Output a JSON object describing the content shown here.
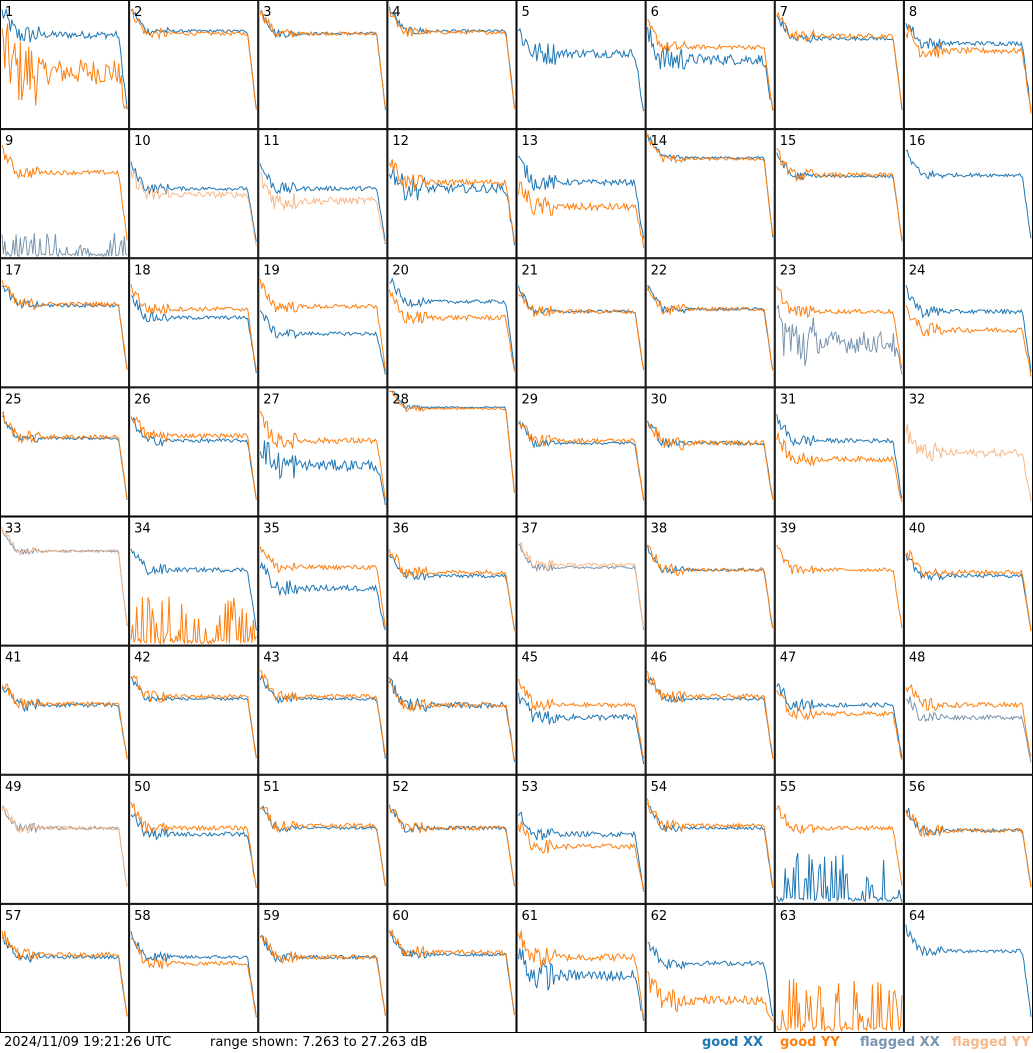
{
  "footer": {
    "timestamp": "2024/11/09 19:21:26 UTC",
    "range_text": "range shown: 7.263 to 27.263 dB",
    "legend": {
      "good_xx": "good XX",
      "good_yy": "good YY",
      "flagged_xx": "flagged XX",
      "flagged_yy": "flagged YY"
    }
  },
  "colors": {
    "good_xx": "#1f77b4",
    "good_yy": "#ff7f0e",
    "flagged_xx": "#7a95b0",
    "flagged_yy": "#f7b98a",
    "grid": "#000000"
  },
  "chart_data": {
    "type": "line",
    "layout": "8x8 small multiples",
    "y_range_db": [
      7.263,
      27.263
    ],
    "panels": [
      {
        "id": "1",
        "xx": "good",
        "yy": "good",
        "xx_level": 0.75,
        "yy_level": 0.45,
        "xx_noise": 0.1,
        "yy_noise": 0.35
      },
      {
        "id": "2",
        "xx": "good",
        "yy": "good",
        "xx_level": 0.78,
        "yy_level": 0.76,
        "xx_noise": 0.04,
        "yy_noise": 0.05
      },
      {
        "id": "3",
        "xx": "good",
        "yy": "good",
        "xx_level": 0.76,
        "yy_level": 0.76,
        "xx_noise": 0.04,
        "yy_noise": 0.05
      },
      {
        "id": "4",
        "xx": "good",
        "yy": "good",
        "xx_level": 0.78,
        "yy_level": 0.77,
        "xx_noise": 0.04,
        "yy_noise": 0.05
      },
      {
        "id": "5",
        "xx": "good",
        "yy": "flagged",
        "xx_level": 0.6,
        "yy_level": 0.0,
        "xx_noise": 0.12,
        "yy_noise": 0.0
      },
      {
        "id": "6",
        "xx": "good",
        "yy": "good",
        "xx_level": 0.55,
        "yy_level": 0.65,
        "xx_noise": 0.15,
        "yy_noise": 0.06
      },
      {
        "id": "7",
        "xx": "good",
        "yy": "good",
        "xx_level": 0.72,
        "yy_level": 0.74,
        "xx_noise": 0.05,
        "yy_noise": 0.06
      },
      {
        "id": "8",
        "xx": "good",
        "yy": "good",
        "xx_level": 0.68,
        "yy_level": 0.62,
        "xx_noise": 0.06,
        "yy_noise": 0.08
      },
      {
        "id": "9",
        "xx": "flagged",
        "yy": "good",
        "xx_level": 0.05,
        "yy_level": 0.68,
        "xx_noise": 0.2,
        "yy_noise": 0.06
      },
      {
        "id": "10",
        "xx": "good",
        "yy": "flagged",
        "xx_level": 0.55,
        "yy_level": 0.5,
        "xx_noise": 0.05,
        "yy_noise": 0.08
      },
      {
        "id": "11",
        "xx": "good",
        "yy": "flagged",
        "xx_level": 0.55,
        "yy_level": 0.45,
        "xx_noise": 0.06,
        "yy_noise": 0.1
      },
      {
        "id": "12",
        "xx": "good",
        "yy": "good",
        "xx_level": 0.55,
        "yy_level": 0.6,
        "xx_noise": 0.12,
        "yy_noise": 0.08
      },
      {
        "id": "13",
        "xx": "good",
        "yy": "good",
        "xx_level": 0.6,
        "yy_level": 0.4,
        "xx_noise": 0.08,
        "yy_noise": 0.1
      },
      {
        "id": "14",
        "xx": "good",
        "yy": "good",
        "xx_level": 0.8,
        "yy_level": 0.79,
        "xx_noise": 0.03,
        "yy_noise": 0.04
      },
      {
        "id": "15",
        "xx": "good",
        "yy": "good",
        "xx_level": 0.65,
        "yy_level": 0.66,
        "xx_noise": 0.04,
        "yy_noise": 0.06
      },
      {
        "id": "16",
        "xx": "good",
        "yy": "flagged",
        "xx_level": 0.66,
        "yy_level": 0.0,
        "xx_noise": 0.05,
        "yy_noise": 0.0
      },
      {
        "id": "17",
        "xx": "good",
        "yy": "good",
        "xx_level": 0.65,
        "yy_level": 0.66,
        "xx_noise": 0.05,
        "yy_noise": 0.06
      },
      {
        "id": "18",
        "xx": "good",
        "yy": "good",
        "xx_level": 0.55,
        "yy_level": 0.62,
        "xx_noise": 0.05,
        "yy_noise": 0.06
      },
      {
        "id": "19",
        "xx": "good",
        "yy": "good",
        "xx_level": 0.42,
        "yy_level": 0.64,
        "xx_noise": 0.05,
        "yy_noise": 0.06
      },
      {
        "id": "20",
        "xx": "good",
        "yy": "good",
        "xx_level": 0.68,
        "yy_level": 0.55,
        "xx_noise": 0.05,
        "yy_noise": 0.07
      },
      {
        "id": "21",
        "xx": "good",
        "yy": "good",
        "xx_level": 0.6,
        "yy_level": 0.6,
        "xx_noise": 0.04,
        "yy_noise": 0.06
      },
      {
        "id": "22",
        "xx": "good",
        "yy": "good",
        "xx_level": 0.62,
        "yy_level": 0.62,
        "xx_noise": 0.04,
        "yy_noise": 0.05
      },
      {
        "id": "23",
        "xx": "flagged",
        "yy": "good",
        "xx_level": 0.35,
        "yy_level": 0.6,
        "xx_noise": 0.3,
        "yy_noise": 0.06
      },
      {
        "id": "24",
        "xx": "good",
        "yy": "good",
        "xx_level": 0.6,
        "yy_level": 0.45,
        "xx_noise": 0.06,
        "yy_noise": 0.07
      },
      {
        "id": "25",
        "xx": "good",
        "yy": "good",
        "xx_level": 0.62,
        "yy_level": 0.63,
        "xx_noise": 0.04,
        "yy_noise": 0.06
      },
      {
        "id": "26",
        "xx": "good",
        "yy": "good",
        "xx_level": 0.6,
        "yy_level": 0.64,
        "xx_noise": 0.05,
        "yy_noise": 0.06
      },
      {
        "id": "27",
        "xx": "good",
        "yy": "good",
        "xx_level": 0.4,
        "yy_level": 0.6,
        "xx_noise": 0.15,
        "yy_noise": 0.08
      },
      {
        "id": "28",
        "xx": "good",
        "yy": "good",
        "xx_level": 0.87,
        "yy_level": 0.86,
        "xx_noise": 0.02,
        "yy_noise": 0.03
      },
      {
        "id": "29",
        "xx": "good",
        "yy": "good",
        "xx_level": 0.58,
        "yy_level": 0.6,
        "xx_noise": 0.04,
        "yy_noise": 0.06
      },
      {
        "id": "30",
        "xx": "good",
        "yy": "good",
        "xx_level": 0.58,
        "yy_level": 0.58,
        "xx_noise": 0.05,
        "yy_noise": 0.07
      },
      {
        "id": "31",
        "xx": "good",
        "yy": "good",
        "xx_level": 0.6,
        "yy_level": 0.45,
        "xx_noise": 0.06,
        "yy_noise": 0.07
      },
      {
        "id": "32",
        "xx": "flagged",
        "yy": "flagged",
        "xx_level": 0.0,
        "yy_level": 0.5,
        "xx_noise": 0.0,
        "yy_noise": 0.1
      },
      {
        "id": "33",
        "xx": "flagged",
        "yy": "flagged",
        "xx_level": 0.75,
        "yy_level": 0.75,
        "xx_noise": 0.03,
        "yy_noise": 0.04
      },
      {
        "id": "34",
        "xx": "good",
        "yy": "good",
        "xx_level": 0.6,
        "yy_level": 0.0,
        "xx_noise": 0.06,
        "yy_noise": 0.4
      },
      {
        "id": "35",
        "xx": "good",
        "yy": "good",
        "xx_level": 0.45,
        "yy_level": 0.62,
        "xx_noise": 0.08,
        "yy_noise": 0.06
      },
      {
        "id": "36",
        "xx": "good",
        "yy": "good",
        "xx_level": 0.55,
        "yy_level": 0.58,
        "xx_noise": 0.05,
        "yy_noise": 0.06
      },
      {
        "id": "37",
        "xx": "flagged",
        "yy": "flagged",
        "xx_level": 0.62,
        "yy_level": 0.64,
        "xx_noise": 0.04,
        "yy_noise": 0.05
      },
      {
        "id": "38",
        "xx": "good",
        "yy": "good",
        "xx_level": 0.6,
        "yy_level": 0.6,
        "xx_noise": 0.04,
        "yy_noise": 0.06
      },
      {
        "id": "39",
        "xx": "flagged",
        "yy": "good",
        "xx_level": 0.0,
        "yy_level": 0.6,
        "xx_noise": 0.0,
        "yy_noise": 0.05
      },
      {
        "id": "40",
        "xx": "good",
        "yy": "good",
        "xx_level": 0.55,
        "yy_level": 0.58,
        "xx_noise": 0.05,
        "yy_noise": 0.06
      },
      {
        "id": "41",
        "xx": "good",
        "yy": "good",
        "xx_level": 0.55,
        "yy_level": 0.56,
        "xx_noise": 0.06,
        "yy_noise": 0.06
      },
      {
        "id": "42",
        "xx": "good",
        "yy": "good",
        "xx_level": 0.6,
        "yy_level": 0.62,
        "xx_noise": 0.04,
        "yy_noise": 0.06
      },
      {
        "id": "43",
        "xx": "good",
        "yy": "good",
        "xx_level": 0.6,
        "yy_level": 0.62,
        "xx_noise": 0.04,
        "yy_noise": 0.06
      },
      {
        "id": "44",
        "xx": "good",
        "yy": "good",
        "xx_level": 0.55,
        "yy_level": 0.55,
        "xx_noise": 0.08,
        "yy_noise": 0.06
      },
      {
        "id": "45",
        "xx": "good",
        "yy": "good",
        "xx_level": 0.45,
        "yy_level": 0.55,
        "xx_noise": 0.08,
        "yy_noise": 0.06
      },
      {
        "id": "46",
        "xx": "good",
        "yy": "good",
        "xx_level": 0.6,
        "yy_level": 0.62,
        "xx_noise": 0.04,
        "yy_noise": 0.06
      },
      {
        "id": "47",
        "xx": "good",
        "yy": "good",
        "xx_level": 0.55,
        "yy_level": 0.48,
        "xx_noise": 0.06,
        "yy_noise": 0.06
      },
      {
        "id": "48",
        "xx": "flagged",
        "yy": "good",
        "xx_level": 0.45,
        "yy_level": 0.55,
        "xx_noise": 0.06,
        "yy_noise": 0.07
      },
      {
        "id": "49",
        "xx": "flagged",
        "yy": "flagged",
        "xx_level": 0.6,
        "yy_level": 0.6,
        "xx_noise": 0.05,
        "yy_noise": 0.05
      },
      {
        "id": "50",
        "xx": "good",
        "yy": "good",
        "xx_level": 0.55,
        "yy_level": 0.6,
        "xx_noise": 0.06,
        "yy_noise": 0.06
      },
      {
        "id": "51",
        "xx": "good",
        "yy": "good",
        "xx_level": 0.6,
        "yy_level": 0.62,
        "xx_noise": 0.04,
        "yy_noise": 0.06
      },
      {
        "id": "52",
        "xx": "good",
        "yy": "good",
        "xx_level": 0.6,
        "yy_level": 0.6,
        "xx_noise": 0.05,
        "yy_noise": 0.06
      },
      {
        "id": "53",
        "xx": "good",
        "yy": "good",
        "xx_level": 0.55,
        "yy_level": 0.45,
        "xx_noise": 0.07,
        "yy_noise": 0.07
      },
      {
        "id": "54",
        "xx": "good",
        "yy": "good",
        "xx_level": 0.6,
        "yy_level": 0.62,
        "xx_noise": 0.04,
        "yy_noise": 0.06
      },
      {
        "id": "55",
        "xx": "good",
        "yy": "good",
        "xx_level": 0.05,
        "yy_level": 0.6,
        "xx_noise": 0.4,
        "yy_noise": 0.06
      },
      {
        "id": "56",
        "xx": "good",
        "yy": "good",
        "xx_level": 0.58,
        "yy_level": 0.58,
        "xx_noise": 0.05,
        "yy_noise": 0.06
      },
      {
        "id": "57",
        "xx": "good",
        "yy": "good",
        "xx_level": 0.6,
        "yy_level": 0.62,
        "xx_noise": 0.05,
        "yy_noise": 0.06
      },
      {
        "id": "58",
        "xx": "good",
        "yy": "good",
        "xx_level": 0.6,
        "yy_level": 0.55,
        "xx_noise": 0.05,
        "yy_noise": 0.06
      },
      {
        "id": "59",
        "xx": "good",
        "yy": "good",
        "xx_level": 0.6,
        "yy_level": 0.6,
        "xx_noise": 0.05,
        "yy_noise": 0.06
      },
      {
        "id": "60",
        "xx": "good",
        "yy": "good",
        "xx_level": 0.62,
        "yy_level": 0.64,
        "xx_noise": 0.04,
        "yy_noise": 0.06
      },
      {
        "id": "61",
        "xx": "good",
        "yy": "good",
        "xx_level": 0.45,
        "yy_level": 0.6,
        "xx_noise": 0.15,
        "yy_noise": 0.1
      },
      {
        "id": "62",
        "xx": "good",
        "yy": "good",
        "xx_level": 0.55,
        "yy_level": 0.25,
        "xx_noise": 0.06,
        "yy_noise": 0.12
      },
      {
        "id": "63",
        "xx": "good",
        "yy": "good",
        "xx_level": 0.0,
        "yy_level": 0.0,
        "xx_noise": 0.0,
        "yy_noise": 0.45
      },
      {
        "id": "64",
        "xx": "good",
        "yy": "flagged",
        "xx_level": 0.65,
        "yy_level": 0.0,
        "xx_noise": 0.05,
        "yy_noise": 0.0
      }
    ]
  }
}
